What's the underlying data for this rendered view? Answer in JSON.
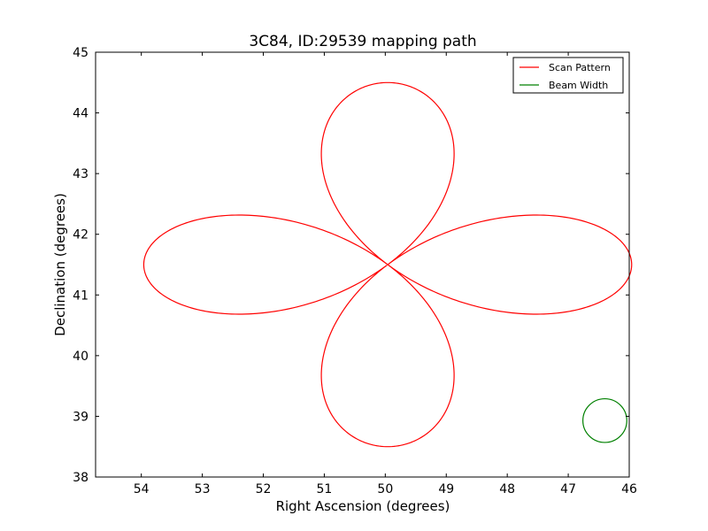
{
  "chart_data": {
    "type": "line",
    "title": "3C84, ID:29539 mapping path",
    "xlabel": "Right Ascension (degrees)",
    "ylabel": "Declination (degrees)",
    "xlim": [
      54.75,
      46.0
    ],
    "ylim": [
      38,
      45
    ],
    "x_inverted": true,
    "xticks": [
      54,
      53,
      52,
      51,
      50,
      49,
      48,
      47,
      46
    ],
    "yticks": [
      38,
      39,
      40,
      41,
      42,
      43,
      44,
      45
    ],
    "grid": false,
    "legend_position": "top-right",
    "series": [
      {
        "name": "Scan Pattern",
        "color": "#ff0000",
        "kind": "rose-curve",
        "center": [
          49.96,
          41.5
        ],
        "ra_radius": 4.0,
        "dec_radius": 3.0,
        "petals": 4
      },
      {
        "name": "Beam Width",
        "color": "#008000",
        "kind": "circle",
        "center": [
          46.4,
          38.93
        ],
        "diameter": 0.72
      }
    ]
  }
}
